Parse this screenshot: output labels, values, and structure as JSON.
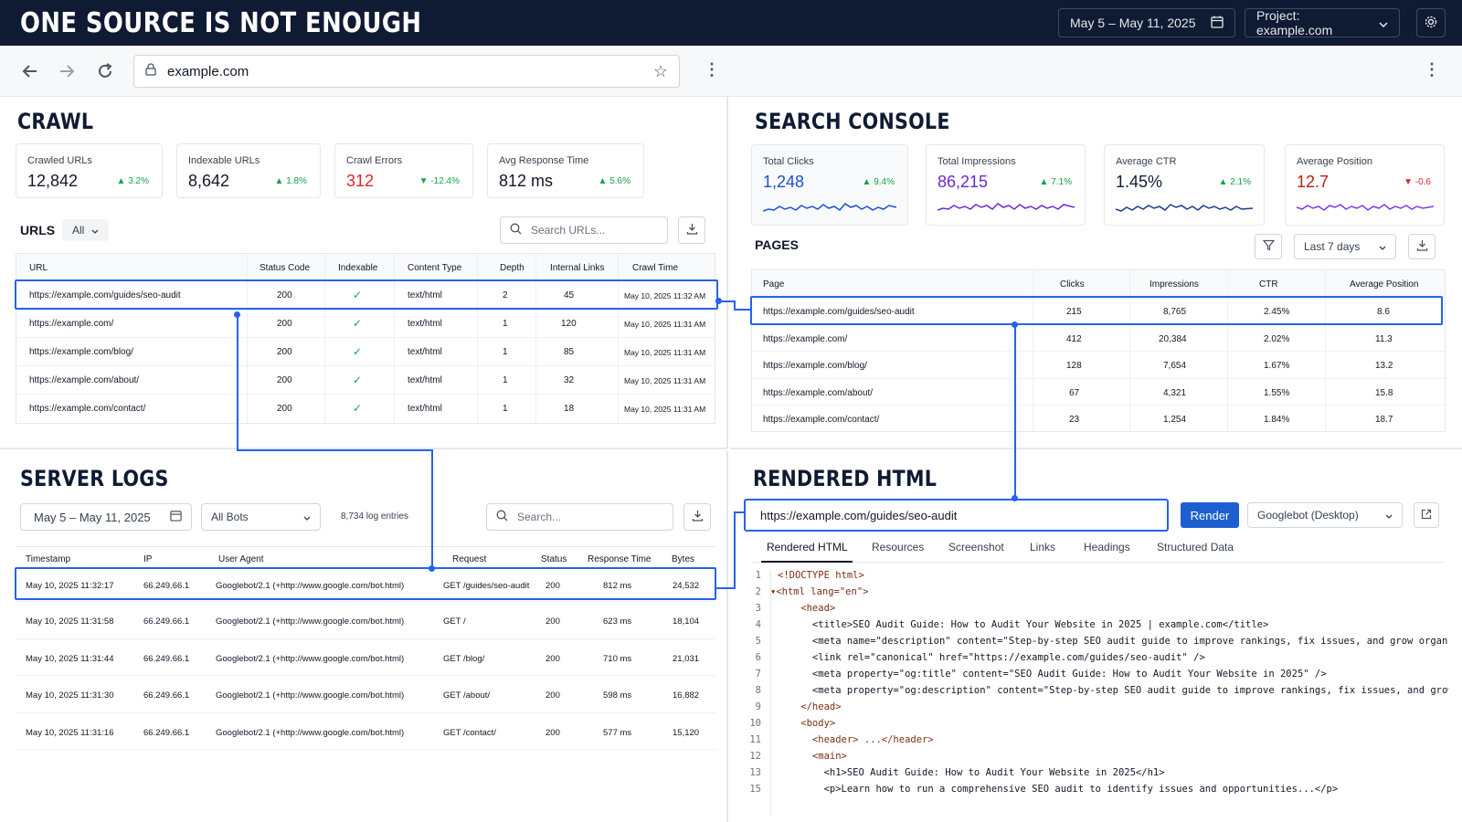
{
  "header": {
    "title": "ONE SOURCE IS NOT ENOUGH",
    "date_range": "May 5 – May 11, 2025",
    "project": "Project: example.com"
  },
  "browser": {
    "url": "example.com"
  },
  "crawl": {
    "title": "CRAWL",
    "kpis": [
      {
        "label": "Crawled URLs",
        "value": "12,842",
        "delta": "▲ 3.2%"
      },
      {
        "label": "Indexable URLs",
        "value": "8,642",
        "delta": "▲ 1.8%"
      },
      {
        "label": "Crawl Errors",
        "value": "312",
        "delta": "▼ -12.4%"
      },
      {
        "label": "Avg Response Time",
        "value": "812 ms",
        "delta": "▲ 5.6%"
      }
    ],
    "urls_label": "URLS",
    "filter": "All",
    "search_placeholder": "Search URLs...",
    "columns": [
      "URL",
      "Status Code",
      "Indexable",
      "Content Type",
      "Depth",
      "Internal Links",
      "Crawl Time"
    ],
    "rows": [
      {
        "url": "https://example.com/guides/seo-audit",
        "status": "200",
        "indexable": "✓",
        "type": "text/html",
        "depth": "2",
        "links": "45",
        "time": "May 10, 2025 11:32 AM"
      },
      {
        "url": "https://example.com/",
        "status": "200",
        "indexable": "✓",
        "type": "text/html",
        "depth": "1",
        "links": "120",
        "time": "May 10, 2025 11:31 AM"
      },
      {
        "url": "https://example.com/blog/",
        "status": "200",
        "indexable": "✓",
        "type": "text/html",
        "depth": "1",
        "links": "85",
        "time": "May 10, 2025 11:31 AM"
      },
      {
        "url": "https://example.com/about/",
        "status": "200",
        "indexable": "✓",
        "type": "text/html",
        "depth": "1",
        "links": "32",
        "time": "May 10, 2025 11:31 AM"
      },
      {
        "url": "https://example.com/contact/",
        "status": "200",
        "indexable": "✓",
        "type": "text/html",
        "depth": "1",
        "links": "18",
        "time": "May 10, 2025 11:31 AM"
      }
    ]
  },
  "search_console": {
    "title": "SEARCH CONSOLE",
    "kpis": [
      {
        "label": "Total Clicks",
        "value": "1,248",
        "delta": "▲ 9.4%",
        "color": "#1d4ed8"
      },
      {
        "label": "Total Impressions",
        "value": "86,215",
        "delta": "▲ 7.1%",
        "color": "#6d28d9"
      },
      {
        "label": "Average CTR",
        "value": "1.45%",
        "delta": "▲ 2.1%",
        "color": "#0f1b33"
      },
      {
        "label": "Average Position",
        "value": "12.7",
        "delta": "▼ -0.6",
        "color": "#b91c1c"
      }
    ],
    "pages_label": "PAGES",
    "range": "Last 7 days",
    "columns": [
      "Page",
      "Clicks",
      "Impressions",
      "CTR",
      "Average Position"
    ],
    "rows": [
      {
        "page": "https://example.com/guides/seo-audit",
        "clicks": "215",
        "impressions": "8,765",
        "ctr": "2.45%",
        "position": "8.6"
      },
      {
        "page": "https://example.com/",
        "clicks": "412",
        "impressions": "20,384",
        "ctr": "2.02%",
        "position": "11.3"
      },
      {
        "page": "https://example.com/blog/",
        "clicks": "128",
        "impressions": "7,654",
        "ctr": "1.67%",
        "position": "13.2"
      },
      {
        "page": "https://example.com/about/",
        "clicks": "67",
        "impressions": "4,321",
        "ctr": "1.55%",
        "position": "15.8"
      },
      {
        "page": "https://example.com/contact/",
        "clicks": "23",
        "impressions": "1,254",
        "ctr": "1.84%",
        "position": "18.7"
      }
    ]
  },
  "server_logs": {
    "title": "SERVER LOGS",
    "date_range": "May 5 – May 11, 2025",
    "bots": "All Bots",
    "entries": "8,734 log entries",
    "search_placeholder": "Search...",
    "columns": [
      "Timestamp",
      "IP",
      "User Agent",
      "Request",
      "Status",
      "Response Time",
      "Bytes"
    ],
    "rows": [
      {
        "ts": "May 10, 2025 11:32:17",
        "ip": "66.249.66.1",
        "ua": "Googlebot/2.1 (+http://www.google.com/bot.html)",
        "req": "GET /guides/seo-audit",
        "status": "200",
        "rt": "812 ms",
        "bytes": "24,532"
      },
      {
        "ts": "May 10, 2025 11:31:58",
        "ip": "66.249.66.1",
        "ua": "Googlebot/2.1 (+http://www.google.com/bot.html)",
        "req": "GET /",
        "status": "200",
        "rt": "623 ms",
        "bytes": "18,104"
      },
      {
        "ts": "May 10, 2025 11:31:44",
        "ip": "66.249.66.1",
        "ua": "Googlebot/2.1 (+http://www.google.com/bot.html)",
        "req": "GET /blog/",
        "status": "200",
        "rt": "710 ms",
        "bytes": "21,031"
      },
      {
        "ts": "May 10, 2025 11:31:30",
        "ip": "66.249.66.1",
        "ua": "Googlebot/2.1 (+http://www.google.com/bot.html)",
        "req": "GET /about/",
        "status": "200",
        "rt": "598 ms",
        "bytes": "16,882"
      },
      {
        "ts": "May 10, 2025 11:31:16",
        "ip": "66.249.66.1",
        "ua": "Googlebot/2.1 (+http://www.google.com/bot.html)",
        "req": "GET /contact/",
        "status": "200",
        "rt": "577 ms",
        "bytes": "15,120"
      }
    ]
  },
  "rendered_html": {
    "title": "RENDERED HTML",
    "url": "https://example.com/guides/seo-audit",
    "render_label": "Render",
    "agent": "Googlebot (Desktop)",
    "tabs": [
      "Rendered HTML",
      "Resources",
      "Screenshot",
      "Links",
      "Headings",
      "Structured Data"
    ],
    "code_lines": [
      {
        "n": "1",
        "html": "<!DOCTYPE html>"
      },
      {
        "n": "2",
        "html": "▾<html lang=\"en\">"
      },
      {
        "n": "3",
        "html": "    <head>"
      },
      {
        "n": "4",
        "html": "      <title>SEO Audit Guide: How to Audit Your Website in 2025 | example.com</title>"
      },
      {
        "n": "5",
        "html": "      <meta name=\"description\" content=\"Step-by-step SEO audit guide to improve rankings, fix issues, and grow organic t"
      },
      {
        "n": "6",
        "html": "      <link rel=\"canonical\" href=\"https://example.com/guides/seo-audit\" />"
      },
      {
        "n": "7",
        "html": "      <meta property=\"og:title\" content=\"SEO Audit Guide: How to Audit Your Website in 2025\" />"
      },
      {
        "n": "8",
        "html": "      <meta property=\"og:description\" content=\"Step-by-step SEO audit guide to improve rankings, fix issues, and grow orga"
      },
      {
        "n": "9",
        "html": "    </head>"
      },
      {
        "n": "10",
        "html": "    <body>"
      },
      {
        "n": "11",
        "html": "      <header> ...</header>"
      },
      {
        "n": "12",
        "html": "      <main>"
      },
      {
        "n": "13",
        "html": "        <h1>SEO Audit Guide: How to Audit Your Website in 2025</h1>"
      },
      {
        "n": "15",
        "html": "        <p>Learn how to run a comprehensive SEO audit to identify issues and opportunities...</p>"
      }
    ]
  }
}
